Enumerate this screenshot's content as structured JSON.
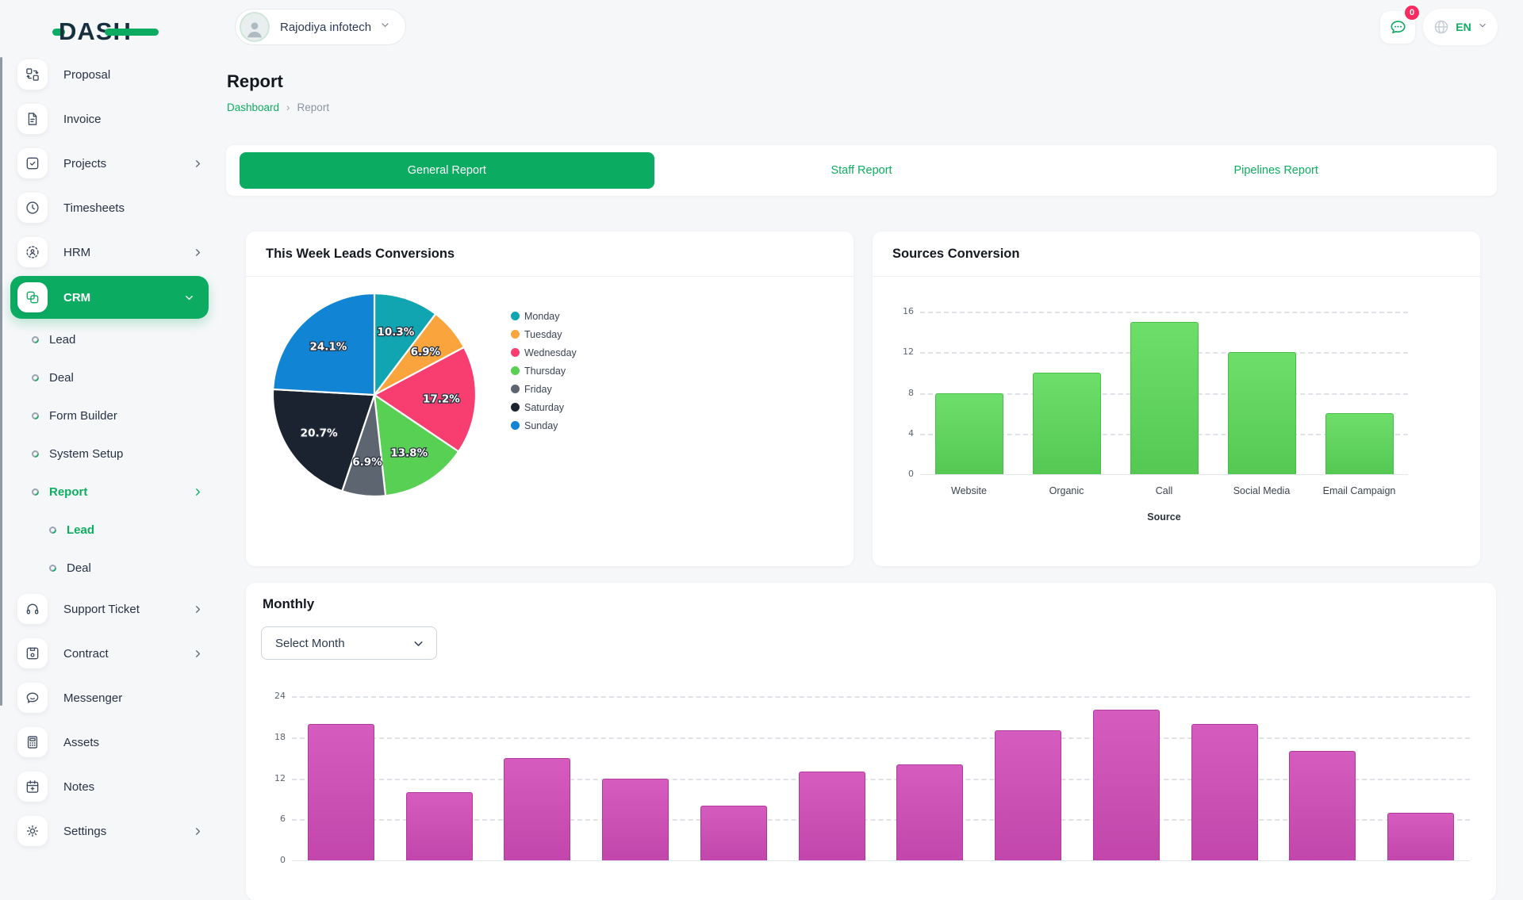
{
  "brand": {
    "name": "DASH"
  },
  "header": {
    "company_selector": {
      "label": "Rajodiya infotech"
    },
    "chat": {
      "badge": "0"
    },
    "language": {
      "label": "EN"
    }
  },
  "sidebar": {
    "items": [
      {
        "label": "Proposal",
        "icon": "proposal-icon",
        "level": 0,
        "chevron": "none",
        "active": false,
        "green": false
      },
      {
        "label": "Invoice",
        "icon": "invoice-icon",
        "level": 0,
        "chevron": "none",
        "active": false,
        "green": false
      },
      {
        "label": "Projects",
        "icon": "projects-icon",
        "level": 0,
        "chevron": "right",
        "active": false,
        "green": false
      },
      {
        "label": "Timesheets",
        "icon": "timesheets-icon",
        "level": 0,
        "chevron": "none",
        "active": false,
        "green": false
      },
      {
        "label": "HRM",
        "icon": "hrm-icon",
        "level": 0,
        "chevron": "right",
        "active": false,
        "green": false
      },
      {
        "label": "CRM",
        "icon": "crm-icon",
        "level": 0,
        "chevron": "down",
        "active": true,
        "green": false
      },
      {
        "label": "Lead",
        "icon": "dot-icon",
        "level": 1,
        "chevron": "none",
        "active": false,
        "green": false
      },
      {
        "label": "Deal",
        "icon": "dot-icon",
        "level": 1,
        "chevron": "none",
        "active": false,
        "green": false
      },
      {
        "label": "Form Builder",
        "icon": "dot-icon",
        "level": 1,
        "chevron": "none",
        "active": false,
        "green": false
      },
      {
        "label": "System Setup",
        "icon": "dot-icon",
        "level": 1,
        "chevron": "none",
        "active": false,
        "green": false
      },
      {
        "label": "Report",
        "icon": "dot-icon",
        "level": 1,
        "chevron": "right",
        "active": false,
        "green": true
      },
      {
        "label": "Lead",
        "icon": "dot-icon",
        "level": 2,
        "chevron": "none",
        "active": false,
        "green": true
      },
      {
        "label": "Deal",
        "icon": "dot-icon",
        "level": 2,
        "chevron": "none",
        "active": false,
        "green": false
      },
      {
        "label": "Support Ticket",
        "icon": "support-ticket-icon",
        "level": 0,
        "chevron": "right",
        "active": false,
        "green": false
      },
      {
        "label": "Contract",
        "icon": "contract-icon",
        "level": 0,
        "chevron": "right",
        "active": false,
        "green": false
      },
      {
        "label": "Messenger",
        "icon": "messenger-icon",
        "level": 0,
        "chevron": "none",
        "active": false,
        "green": false
      },
      {
        "label": "Assets",
        "icon": "assets-icon",
        "level": 0,
        "chevron": "none",
        "active": false,
        "green": false
      },
      {
        "label": "Notes",
        "icon": "notes-icon",
        "level": 0,
        "chevron": "none",
        "active": false,
        "green": false
      },
      {
        "label": "Settings",
        "icon": "settings-icon",
        "level": 0,
        "chevron": "right",
        "active": false,
        "green": false
      }
    ]
  },
  "page": {
    "title": "Report",
    "breadcrumb": {
      "home": "Dashboard",
      "separator": "›",
      "current": "Report"
    }
  },
  "tabs": [
    {
      "label": "General Report",
      "active": true
    },
    {
      "label": "Staff Report",
      "active": false
    },
    {
      "label": "Pipelines Report",
      "active": false
    }
  ],
  "panels": {
    "pie_card_title": "This Week Leads Conversions",
    "bar_card_title": "Sources Conversion",
    "monthly_card_title": "Monthly",
    "month_select_value": "Select Month"
  },
  "colors": {
    "accent": "#0caf60",
    "badge": "#fb2b5f",
    "bar_green": "#5ecd5b",
    "bar_magenta": "#c94fb3"
  },
  "chart_data": [
    {
      "type": "pie",
      "title": "This Week Leads Conversions",
      "legend_position": "right",
      "value_suffix": "%",
      "series": [
        {
          "label": "Monday",
          "value": 10.3,
          "color": "#10a5b0"
        },
        {
          "label": "Tuesday",
          "value": 6.9,
          "color": "#f9a43c"
        },
        {
          "label": "Wednesday",
          "value": 17.2,
          "color": "#f83e70"
        },
        {
          "label": "Thursday",
          "value": 13.8,
          "color": "#57d053"
        },
        {
          "label": "Friday",
          "value": 6.9,
          "color": "#5d6670"
        },
        {
          "label": "Saturday",
          "value": 20.7,
          "color": "#1b2330"
        },
        {
          "label": "Sunday",
          "value": 24.1,
          "color": "#1185d3"
        }
      ]
    },
    {
      "type": "bar",
      "title": "Sources Conversion",
      "categories": [
        "Website",
        "Organic",
        "Call",
        "Social Media",
        "Email Campaign"
      ],
      "values": [
        8,
        10,
        15,
        12,
        6
      ],
      "xlabel": "Source",
      "ylim": [
        0,
        16
      ],
      "yticks": [
        0,
        4,
        8,
        12,
        16
      ],
      "grid": "dashed",
      "bar_color": "#55c854",
      "bar_color_light": "#6ede6a",
      "bar_border": "#49bd49"
    },
    {
      "type": "bar",
      "title": "Monthly",
      "categories": [
        "",
        "",
        "",
        "",
        "",
        "",
        "",
        "",
        "",
        "",
        "",
        ""
      ],
      "values": [
        20,
        10,
        15,
        12,
        8,
        13,
        14,
        19,
        22,
        20,
        16,
        7
      ],
      "xlabel": "",
      "ylim": [
        0,
        24
      ],
      "yticks": [
        0,
        6,
        12,
        18,
        24
      ],
      "grid": "dashed",
      "bar_color": "#c246ab",
      "bar_color_light": "#d55cbe",
      "bar_border": "#b13a9d"
    }
  ]
}
